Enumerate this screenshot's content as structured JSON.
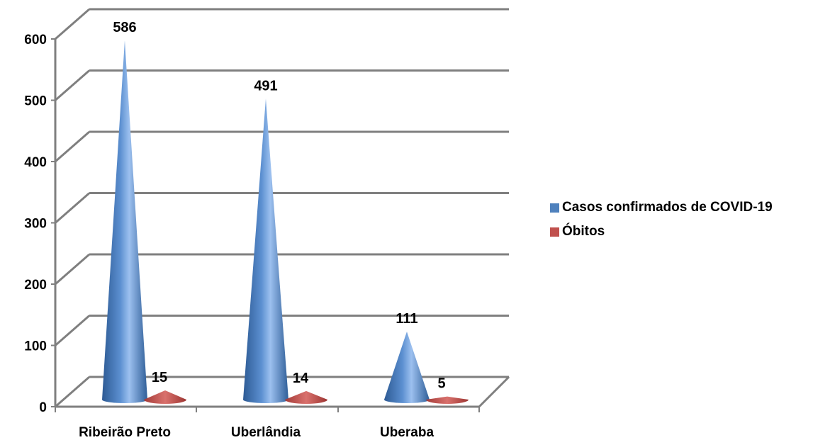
{
  "chart_data": {
    "type": "bar",
    "style": "3d-cone",
    "categories": [
      "Ribeirão Preto",
      "Uberlândia",
      "Uberaba"
    ],
    "series": [
      {
        "name": "Casos confirmados de COVID-19",
        "values": [
          586,
          491,
          111
        ],
        "color": "#4F81BD"
      },
      {
        "name": "Óbitos",
        "values": [
          15,
          14,
          5
        ],
        "color": "#C0504D"
      }
    ],
    "yticks": [
      "0",
      "100",
      "200",
      "300",
      "400",
      "500",
      "600"
    ],
    "ylim": [
      0,
      600
    ],
    "grid": true,
    "legend_position": "right",
    "title": "",
    "xlabel": "",
    "ylabel": ""
  }
}
